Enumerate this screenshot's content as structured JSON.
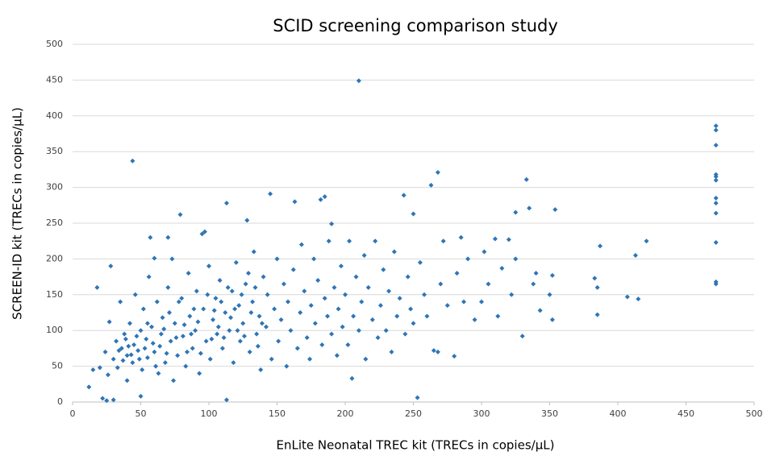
{
  "chart_data": {
    "type": "scatter",
    "title": "SCID screening comparison study",
    "x_label": "EnLite Neonatal TREC kit (TRECs in copies/µL)",
    "y_label": "SCREEN-ID kit (TRECs in copies/µL)",
    "color": "#2e75b6",
    "grid": true,
    "xlim": [
      0,
      500
    ],
    "ylim": [
      0,
      500
    ],
    "xticks": [
      0,
      50,
      100,
      150,
      200,
      250,
      300,
      350,
      400,
      450,
      500
    ],
    "yticks": [
      0,
      50,
      100,
      150,
      200,
      250,
      300,
      350,
      400,
      450,
      500
    ],
    "x": [
      12,
      15,
      18,
      20,
      22,
      24,
      25,
      26,
      27,
      28,
      30,
      30,
      32,
      33,
      35,
      36,
      38,
      40,
      40,
      42,
      44,
      44,
      45,
      46,
      48,
      50,
      50,
      51,
      52,
      54,
      55,
      56,
      57,
      58,
      60,
      60,
      62,
      63,
      65,
      66,
      68,
      70,
      70,
      72,
      73,
      74,
      75,
      77,
      79,
      80,
      81,
      83,
      85,
      86,
      88,
      90,
      91,
      93,
      95,
      96,
      97,
      98,
      100,
      101,
      103,
      105,
      106,
      108,
      110,
      112,
      113,
      113,
      115,
      117,
      118,
      120,
      122,
      123,
      125,
      127,
      128,
      130,
      132,
      133,
      135,
      137,
      138,
      140,
      142,
      143,
      145,
      146,
      148,
      150,
      151,
      153,
      155,
      157,
      158,
      160,
      162,
      163,
      165,
      167,
      168,
      170,
      172,
      174,
      175,
      177,
      178,
      180,
      182,
      183,
      185,
      185,
      187,
      188,
      190,
      190,
      192,
      194,
      195,
      197,
      198,
      200,
      202,
      203,
      205,
      206,
      208,
      210,
      210,
      212,
      214,
      215,
      217,
      220,
      222,
      224,
      226,
      228,
      230,
      232,
      234,
      236,
      238,
      240,
      243,
      244,
      246,
      248,
      250,
      250,
      253,
      255,
      258,
      260,
      263,
      265,
      268,
      268,
      270,
      272,
      275,
      280,
      282,
      285,
      287,
      290,
      295,
      300,
      302,
      305,
      310,
      312,
      315,
      320,
      322,
      325,
      325,
      330,
      333,
      335,
      338,
      340,
      343,
      350,
      352,
      352,
      354,
      383,
      385,
      385,
      387,
      407,
      413,
      415,
      421,
      472,
      472,
      472,
      472,
      472,
      472,
      472,
      472,
      472,
      472,
      472,
      472,
      34,
      37,
      39,
      41,
      43,
      47,
      49,
      53,
      55,
      59,
      61,
      64,
      67,
      69,
      71,
      76,
      78,
      82,
      84,
      87,
      89,
      92,
      94,
      99,
      102,
      104,
      107,
      109,
      111,
      114,
      116,
      119,
      121,
      124,
      126,
      129,
      131,
      134,
      136,
      139
    ],
    "y": [
      21,
      45,
      160,
      48,
      5,
      70,
      2,
      38,
      112,
      190,
      3,
      60,
      85,
      48,
      140,
      75,
      95,
      30,
      65,
      110,
      337,
      55,
      80,
      150,
      72,
      8,
      100,
      45,
      130,
      88,
      62,
      175,
      230,
      105,
      201,
      70,
      140,
      40,
      95,
      118,
      55,
      230,
      160,
      85,
      200,
      30,
      110,
      65,
      262,
      145,
      92,
      50,
      180,
      120,
      75,
      100,
      155,
      40,
      235,
      130,
      238,
      85,
      190,
      60,
      115,
      145,
      95,
      170,
      75,
      125,
      278,
      3,
      100,
      155,
      55,
      195,
      135,
      85,
      110,
      165,
      254,
      70,
      140,
      210,
      95,
      120,
      45,
      175,
      105,
      150,
      291,
      60,
      130,
      200,
      85,
      115,
      165,
      50,
      140,
      100,
      185,
      280,
      75,
      125,
      220,
      155,
      90,
      60,
      135,
      200,
      110,
      170,
      283,
      80,
      287,
      145,
      120,
      225,
      249,
      95,
      160,
      65,
      130,
      190,
      105,
      150,
      80,
      225,
      33,
      120,
      175,
      449,
      100,
      140,
      205,
      60,
      160,
      115,
      225,
      90,
      135,
      185,
      100,
      155,
      70,
      210,
      120,
      145,
      289,
      95,
      175,
      130,
      263,
      110,
      6,
      195,
      150,
      120,
      303,
      72,
      321,
      70,
      165,
      225,
      135,
      64,
      180,
      230,
      140,
      200,
      115,
      140,
      210,
      165,
      228,
      120,
      187,
      227,
      150,
      265,
      200,
      92,
      311,
      271,
      165,
      180,
      128,
      150,
      177,
      115,
      269,
      173,
      160,
      122,
      218,
      147,
      205,
      144,
      225,
      386,
      380,
      359,
      318,
      315,
      310,
      285,
      278,
      264,
      223,
      168,
      165,
      72,
      58,
      88,
      78,
      66,
      92,
      60,
      75,
      110,
      82,
      50,
      78,
      102,
      68,
      125,
      90,
      140,
      108,
      70,
      95,
      130,
      112,
      68,
      150,
      88,
      128,
      105,
      140,
      90,
      160,
      118,
      130,
      100,
      150,
      92,
      180,
      125,
      160,
      78,
      110
    ]
  }
}
